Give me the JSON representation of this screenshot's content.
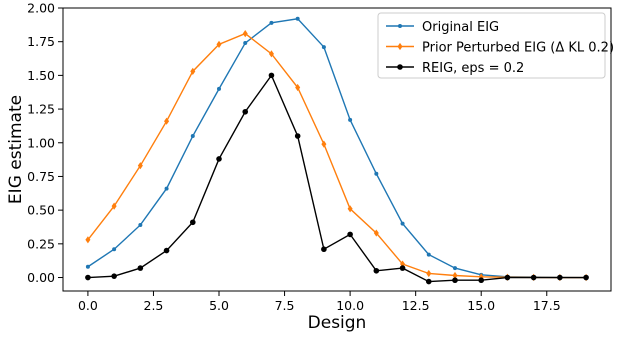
{
  "chart_data": {
    "type": "line",
    "title": "",
    "xlabel": "Design",
    "ylabel": "EIG estimate",
    "xlim": [
      -0.95,
      19.95
    ],
    "ylim": [
      -0.1,
      2.0
    ],
    "xticks": [
      0.0,
      2.5,
      5.0,
      7.5,
      10.0,
      12.5,
      15.0,
      17.5
    ],
    "xtick_labels": [
      "0.0",
      "2.5",
      "5.0",
      "7.5",
      "10.0",
      "12.5",
      "15.0",
      "17.5"
    ],
    "yticks": [
      0.0,
      0.25,
      0.5,
      0.75,
      1.0,
      1.25,
      1.5,
      1.75,
      2.0
    ],
    "ytick_labels": [
      "0.00",
      "0.25",
      "0.50",
      "0.75",
      "1.00",
      "1.25",
      "1.50",
      "1.75",
      "2.00"
    ],
    "grid": false,
    "legend_position": "top-right",
    "x": [
      0,
      1,
      2,
      3,
      4,
      5,
      6,
      7,
      8,
      9,
      10,
      11,
      12,
      13,
      14,
      15,
      16,
      17,
      18,
      19
    ],
    "series": [
      {
        "name": "Original EIG",
        "color": "#1f77b4",
        "marker": "dot",
        "values": [
          0.08,
          0.21,
          0.39,
          0.66,
          1.05,
          1.4,
          1.74,
          1.89,
          1.92,
          1.71,
          1.17,
          0.77,
          0.4,
          0.17,
          0.07,
          0.02,
          0.005,
          0.003,
          0.001,
          0.0
        ]
      },
      {
        "name": "Prior Perturbed EIG (Δ KL 0.2)",
        "color": "#ff7f0e",
        "marker": "diamond",
        "values": [
          0.28,
          0.53,
          0.83,
          1.16,
          1.53,
          1.73,
          1.81,
          1.66,
          1.41,
          0.99,
          0.51,
          0.33,
          0.1,
          0.03,
          0.015,
          0.005,
          0.002,
          0.001,
          0.0,
          0.0
        ]
      },
      {
        "name": "REIG, eps = 0.2",
        "color": "#000000",
        "marker": "circle",
        "values": [
          0.0,
          0.01,
          0.07,
          0.2,
          0.41,
          0.88,
          1.23,
          1.5,
          1.05,
          0.21,
          0.32,
          0.05,
          0.07,
          -0.03,
          -0.02,
          -0.02,
          0.0,
          0.0,
          0.0,
          0.0
        ]
      }
    ]
  }
}
